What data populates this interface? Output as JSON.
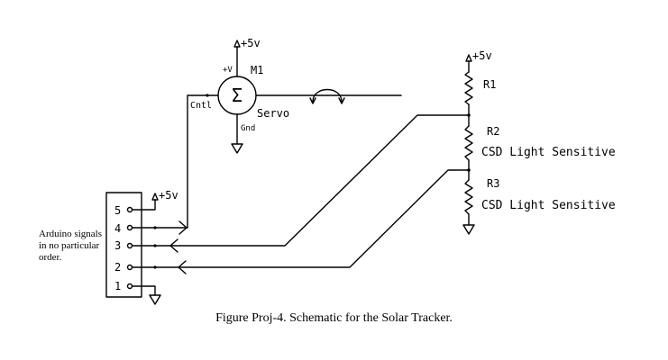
{
  "servo": {
    "ref": "M1",
    "supply": "+5v",
    "plus_pin": "+V",
    "control_pin": "Cntl",
    "ground_pin": "Gnd",
    "name": "Servo",
    "symbol": "Σ"
  },
  "resistors": {
    "supply": "+5v",
    "r1": "R1",
    "r2": "R2",
    "r2_desc": "CSD Light Sensitive",
    "r3": "R3",
    "r3_desc": "CSD Light Sensitive"
  },
  "connector": {
    "supply": "+5v",
    "pins": [
      "5",
      "4",
      "3",
      "2",
      "1"
    ],
    "note": [
      "Arduino signals",
      "in no particular",
      "order."
    ]
  },
  "caption": "Figure Proj-4. Schematic for the Solar Tracker."
}
